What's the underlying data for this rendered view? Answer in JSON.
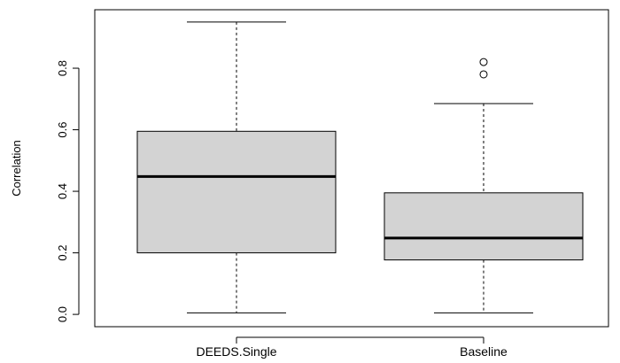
{
  "chart_data": {
    "type": "box",
    "title": "",
    "xlabel": "",
    "ylabel": "Correlation",
    "ylim": [
      -0.04,
      0.99
    ],
    "y_ticks": [
      "0.0",
      "0.2",
      "0.4",
      "0.6",
      "0.8"
    ],
    "grid": false,
    "legend": "none",
    "colors": {
      "box_fill": "#d3d3d3",
      "stroke": "#000000"
    },
    "categories": [
      "DEEDS.Single",
      "Baseline"
    ],
    "boxes": [
      {
        "category": "DEEDS.Single",
        "min": 0.005,
        "q1": 0.2,
        "median": 0.448,
        "q3": 0.595,
        "max": 0.95,
        "outliers": []
      },
      {
        "category": "Baseline",
        "min": 0.005,
        "q1": 0.177,
        "median": 0.248,
        "q3": 0.395,
        "max": 0.685,
        "outliers": [
          0.78,
          0.82
        ]
      }
    ]
  }
}
